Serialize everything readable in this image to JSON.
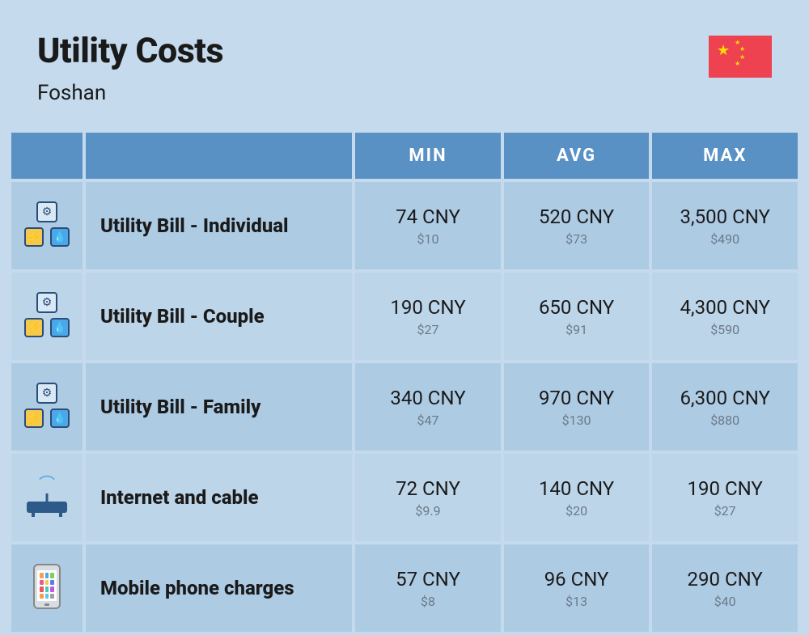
{
  "header": {
    "title": "Utility Costs",
    "subtitle": "Foshan"
  },
  "columns": {
    "min": "MIN",
    "avg": "AVG",
    "max": "MAX"
  },
  "rows": [
    {
      "icon": "utility",
      "label": "Utility Bill - Individual",
      "min": {
        "primary": "74 CNY",
        "secondary": "$10"
      },
      "avg": {
        "primary": "520 CNY",
        "secondary": "$73"
      },
      "max": {
        "primary": "3,500 CNY",
        "secondary": "$490"
      }
    },
    {
      "icon": "utility",
      "label": "Utility Bill - Couple",
      "min": {
        "primary": "190 CNY",
        "secondary": "$27"
      },
      "avg": {
        "primary": "650 CNY",
        "secondary": "$91"
      },
      "max": {
        "primary": "4,300 CNY",
        "secondary": "$590"
      }
    },
    {
      "icon": "utility",
      "label": "Utility Bill - Family",
      "min": {
        "primary": "340 CNY",
        "secondary": "$47"
      },
      "avg": {
        "primary": "970 CNY",
        "secondary": "$130"
      },
      "max": {
        "primary": "6,300 CNY",
        "secondary": "$880"
      }
    },
    {
      "icon": "internet",
      "label": "Internet and cable",
      "min": {
        "primary": "72 CNY",
        "secondary": "$9.9"
      },
      "avg": {
        "primary": "140 CNY",
        "secondary": "$20"
      },
      "max": {
        "primary": "190 CNY",
        "secondary": "$27"
      }
    },
    {
      "icon": "phone",
      "label": "Mobile phone charges",
      "min": {
        "primary": "57 CNY",
        "secondary": "$8"
      },
      "avg": {
        "primary": "96 CNY",
        "secondary": "$13"
      },
      "max": {
        "primary": "290 CNY",
        "secondary": "$40"
      }
    }
  ],
  "colors": {
    "page_bg": "#c5dbed",
    "header_bg": "#5991c4",
    "row_odd": "#aecbe4",
    "row_even": "#bdd5e9",
    "text_primary": "#1a1a1a",
    "text_secondary": "#6a7a88",
    "flag_bg": "#ee4250",
    "flag_star": "#ffde00"
  },
  "phone_app_colors": [
    "#f7a14a",
    "#4aa8e8",
    "#7bcf5a",
    "#e85a9a",
    "#f7c948",
    "#5a7ae8",
    "#e85a5a",
    "#48c9b0",
    "#b85ae8",
    "#f79e4a",
    "#5ac8e8",
    "#a0a0a0"
  ]
}
